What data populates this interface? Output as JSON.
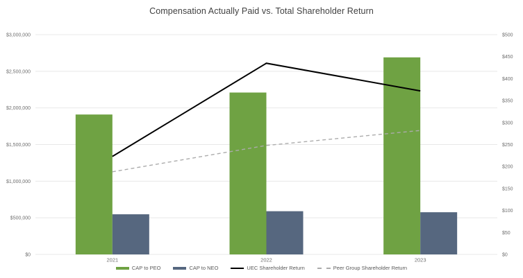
{
  "chart_data": {
    "type": "combo-bar-line",
    "title": "Compensation Actually Paid vs. Total Shareholder Return",
    "categories": [
      "2021",
      "2022",
      "2023"
    ],
    "series": [
      {
        "name": "CAP to PEO",
        "kind": "bar",
        "axis": "left",
        "color": "#6FA243",
        "values": [
          1910000,
          2210000,
          2690000
        ]
      },
      {
        "name": "CAP to NEO",
        "kind": "bar",
        "axis": "left",
        "color": "#56677F",
        "values": [
          548000,
          590000,
          576000
        ]
      },
      {
        "name": "UEC Shareholder Return",
        "kind": "line",
        "axis": "right",
        "color": "#000000",
        "dashed": false,
        "values": [
          223,
          435,
          372
        ]
      },
      {
        "name": "Peer Group Shareholder Return",
        "kind": "line",
        "axis": "right",
        "color": "#ABABAB",
        "dashed": true,
        "values": [
          188,
          248,
          282
        ]
      }
    ],
    "left_axis": {
      "min": 0,
      "max": 3000000,
      "step": 500000,
      "ticks": [
        "$0",
        "$500,000",
        "$1,000,000",
        "$1,500,000",
        "$2,000,000",
        "$2,500,000",
        "$3,000,000"
      ]
    },
    "right_axis": {
      "min": 0,
      "max": 500,
      "step": 50,
      "ticks": [
        "$0",
        "$50",
        "$100",
        "$150",
        "$200",
        "$250",
        "$300",
        "$350",
        "$400",
        "$450",
        "$500"
      ]
    },
    "grid": true,
    "legend_position": "bottom",
    "colors": {
      "gridline": "#E8E8E8",
      "tick_label": "#6E6E6E",
      "title": "#404040",
      "legend_label": "#595959",
      "background": "#FFFFFF"
    }
  }
}
